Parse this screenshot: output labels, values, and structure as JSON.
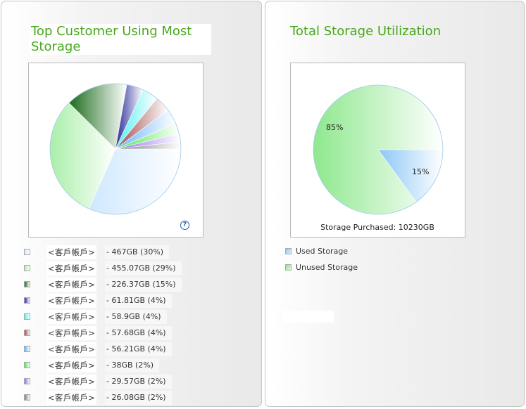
{
  "left_panel": {
    "title": "Top Customer Using Most Storage",
    "help_icon_glyph": "?",
    "legend": [
      {
        "label": "<客戶帳戶>",
        "value": "- 467GB (30%)",
        "color_from": "#cfe8ff",
        "color_to": "#ffffff"
      },
      {
        "label": "<客戶帳戶>",
        "value": "- 455.07GB (29%)",
        "color_from": "#a9efa9",
        "color_to": "#ffffff"
      },
      {
        "label": "<客戶帳戶>",
        "value": "- 226.37GB (15%)",
        "color_from": "#1b6b1b",
        "color_to": "#ffffff"
      },
      {
        "label": "<客戶帳戶>",
        "value": "- 61.81GB (4%)",
        "color_from": "#2a2a9a",
        "color_to": "#ffffff"
      },
      {
        "label": "<客戶帳戶>",
        "value": "- 58.9GB (4%)",
        "color_from": "#4ff0f0",
        "color_to": "#ffffff"
      },
      {
        "label": "<客戶帳戶>",
        "value": "- 57.68GB (4%)",
        "color_from": "#a04a4a",
        "color_to": "#ffffff"
      },
      {
        "label": "<客戶帳戶>",
        "value": "- 56.21GB (4%)",
        "color_from": "#6ab4ff",
        "color_to": "#ffffff"
      },
      {
        "label": "<客戶帳戶>",
        "value": "- 38GB (2%)",
        "color_from": "#4ee84e",
        "color_to": "#ffffff"
      },
      {
        "label": "<客戶帳戶>",
        "value": "- 29.57GB (2%)",
        "color_from": "#9b6cf0",
        "color_to": "#ffffff"
      },
      {
        "label": "<客戶帳戶>",
        "value": "- 26.08GB (2%)",
        "color_from": "#808080",
        "color_to": "#ffffff"
      }
    ]
  },
  "right_panel": {
    "title": "Total Storage Utilization",
    "storage_purchased": "Storage Purchased: 10230GB",
    "legend": [
      {
        "label": "Used Storage",
        "color": "#a9d6fb"
      },
      {
        "label": "Unused Storage",
        "color": "#a8e8a8"
      }
    ]
  },
  "chart_data": [
    {
      "type": "pie",
      "title": "Top Customer Using Most Storage",
      "unit": "GB",
      "categories": [
        "<客戶帳戶>",
        "<客戶帳戶>",
        "<客戶帳戶>",
        "<客戶帳戶>",
        "<客戶帳戶>",
        "<客戶帳戶>",
        "<客戶帳戶>",
        "<客戶帳戶>",
        "<客戶帳戶>",
        "<客戶帳戶>"
      ],
      "values": [
        467,
        455.07,
        226.37,
        61.81,
        58.9,
        57.68,
        56.21,
        38,
        29.57,
        26.08
      ],
      "percent_labels": [
        "30%",
        "29%",
        "15%",
        "4%",
        "4%",
        "4%",
        "4%",
        "2%",
        "2%",
        "2%"
      ]
    },
    {
      "type": "pie",
      "title": "Total Storage Utilization",
      "categories": [
        "Used Storage",
        "Unused Storage"
      ],
      "values": [
        15,
        85
      ],
      "slice_labels": [
        "15%",
        "85%"
      ]
    }
  ]
}
